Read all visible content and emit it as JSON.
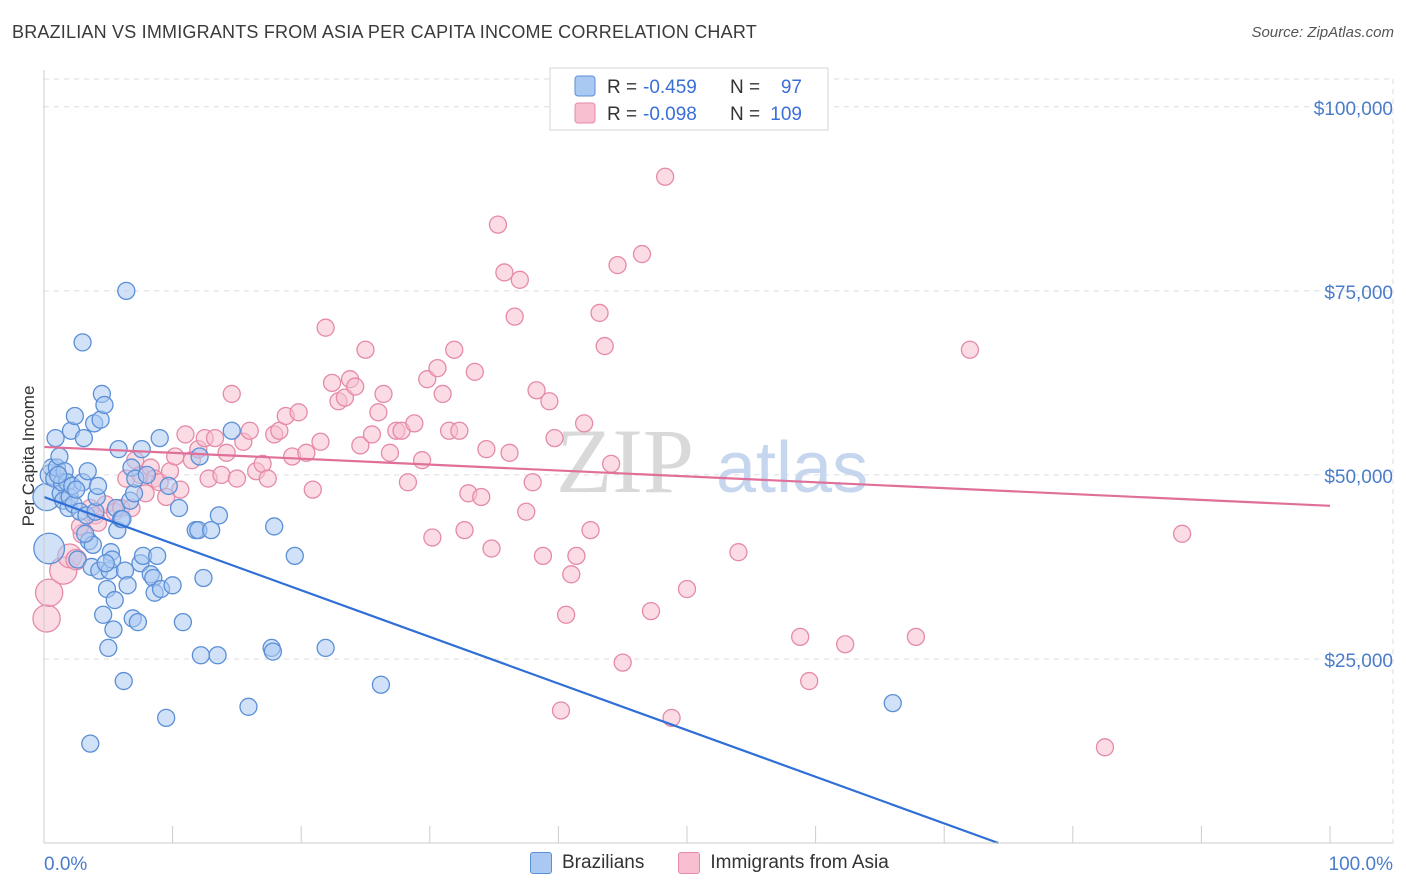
{
  "title": "BRAZILIAN VS IMMIGRANTS FROM ASIA PER CAPITA INCOME CORRELATION CHART",
  "source": "Source: ZipAtlas.com",
  "watermark": {
    "zip": "ZIP",
    "atlas": "atlas"
  },
  "colors": {
    "blue_fill": "#a9c8f2",
    "blue_stroke": "#5b8fd6",
    "blue_line": "#2f6fd6",
    "pink_fill": "#f7bfd0",
    "pink_stroke": "#e58aa8",
    "pink_line": "#e07099",
    "grid": "#dddddd",
    "tick_text": "#4a7ccc"
  },
  "legend": {
    "rows": [
      {
        "r_label": "R =",
        "r_value": "-0.459",
        "n_label": "N =",
        "n_value": "97"
      },
      {
        "r_label": "R =",
        "r_value": "-0.098",
        "n_label": "N =",
        "n_value": "109"
      }
    ]
  },
  "bottom_legend": {
    "series1": "Brazilians",
    "series2": "Immigrants from Asia"
  },
  "chart_data": {
    "type": "scatter",
    "title": "BRAZILIAN VS IMMIGRANTS FROM ASIA PER CAPITA INCOME CORRELATION CHART",
    "xlabel": "",
    "ylabel": "Per Capita Income",
    "xlim": [
      0,
      100
    ],
    "ylim": [
      0,
      105000
    ],
    "x_tick_labels": [
      "0.0%",
      "100.0%"
    ],
    "y_ticks": [
      25000,
      50000,
      75000,
      100000
    ],
    "y_tick_labels": [
      "$25,000",
      "$50,000",
      "$75,000",
      "$100,000"
    ],
    "grid": true,
    "series": [
      {
        "name": "Brazilians",
        "r": -0.459,
        "n": 97,
        "trend": {
          "x": [
            0,
            74.2
          ],
          "y": [
            47000,
            0
          ]
        },
        "points": [
          [
            0.2,
            47000,
            1.6
          ],
          [
            0.4,
            40000,
            1.8
          ],
          [
            0.5,
            50000,
            1.2
          ],
          [
            0.6,
            51000,
            1.0
          ],
          [
            0.8,
            49500,
            1.0
          ],
          [
            0.9,
            55000,
            1.0
          ],
          [
            1.0,
            51000,
            1.0
          ],
          [
            1.2,
            52500,
            1.0
          ],
          [
            1.3,
            47500,
            1.0
          ],
          [
            1.4,
            49000,
            1.0
          ],
          [
            1.5,
            46500,
            1.0
          ],
          [
            1.6,
            50500,
            1.0
          ],
          [
            1.8,
            49000,
            1.0
          ],
          [
            1.9,
            45500,
            1.0
          ],
          [
            2.0,
            47000,
            1.0
          ],
          [
            2.1,
            56000,
            1.0
          ],
          [
            2.2,
            48500,
            1.0
          ],
          [
            2.3,
            46000,
            1.0
          ],
          [
            2.4,
            58000,
            1.0
          ],
          [
            2.6,
            38500,
            1.0
          ],
          [
            2.8,
            45000,
            1.0
          ],
          [
            3.0,
            49000,
            1.0
          ],
          [
            3.1,
            55000,
            1.0
          ],
          [
            3.0,
            68000,
            1.0
          ],
          [
            3.3,
            44500,
            1.0
          ],
          [
            3.4,
            50500,
            1.0
          ],
          [
            3.5,
            41000,
            1.0
          ],
          [
            3.6,
            13500,
            1.0
          ],
          [
            3.7,
            37500,
            1.0
          ],
          [
            3.8,
            40500,
            1.0
          ],
          [
            3.9,
            57000,
            1.0
          ],
          [
            4.0,
            45000,
            1.0
          ],
          [
            4.1,
            47000,
            1.0
          ],
          [
            4.2,
            48500,
            1.0
          ],
          [
            4.3,
            37000,
            1.0
          ],
          [
            4.4,
            57500,
            1.0
          ],
          [
            4.5,
            61000,
            1.0
          ],
          [
            4.6,
            31000,
            1.0
          ],
          [
            4.7,
            59500,
            1.0
          ],
          [
            4.9,
            34500,
            1.0
          ],
          [
            5.0,
            26500,
            1.0
          ],
          [
            5.1,
            37000,
            1.0
          ],
          [
            5.2,
            39500,
            1.0
          ],
          [
            5.3,
            38500,
            1.0
          ],
          [
            5.4,
            29000,
            1.0
          ],
          [
            5.5,
            33000,
            1.0
          ],
          [
            5.6,
            45500,
            1.0
          ],
          [
            5.7,
            42500,
            1.0
          ],
          [
            5.8,
            53500,
            1.0
          ],
          [
            6.0,
            44000,
            1.0
          ],
          [
            6.2,
            22000,
            1.0
          ],
          [
            6.3,
            37000,
            1.0
          ],
          [
            6.4,
            75000,
            1.0
          ],
          [
            6.5,
            35000,
            1.0
          ],
          [
            6.7,
            46500,
            1.0
          ],
          [
            6.8,
            51000,
            1.0
          ],
          [
            6.9,
            30500,
            1.0
          ],
          [
            7.0,
            47500,
            1.0
          ],
          [
            7.1,
            49500,
            1.0
          ],
          [
            7.3,
            30000,
            1.0
          ],
          [
            7.5,
            38000,
            1.0
          ],
          [
            7.6,
            53500,
            1.0
          ],
          [
            7.7,
            39000,
            1.0
          ],
          [
            8.0,
            50000,
            1.0
          ],
          [
            8.3,
            36500,
            1.0
          ],
          [
            8.5,
            36000,
            1.0
          ],
          [
            8.6,
            34000,
            1.0
          ],
          [
            8.8,
            39000,
            1.0
          ],
          [
            9.0,
            55000,
            1.0
          ],
          [
            9.1,
            34500,
            1.0
          ],
          [
            9.5,
            17000,
            1.0
          ],
          [
            9.7,
            48500,
            1.0
          ],
          [
            10.0,
            35000,
            1.0
          ],
          [
            10.5,
            45500,
            1.0
          ],
          [
            10.8,
            30000,
            1.0
          ],
          [
            11.8,
            42500,
            1.0
          ],
          [
            12.0,
            42500,
            1.0
          ],
          [
            12.1,
            52500,
            1.0
          ],
          [
            12.2,
            25500,
            1.0
          ],
          [
            12.4,
            36000,
            1.0
          ],
          [
            13.0,
            42500,
            1.0
          ],
          [
            13.5,
            25500,
            1.0
          ],
          [
            13.6,
            44500,
            1.0
          ],
          [
            14.6,
            56000,
            1.0
          ],
          [
            15.9,
            18500,
            1.0
          ],
          [
            17.7,
            26500,
            1.0
          ],
          [
            17.8,
            26000,
            1.0
          ],
          [
            17.9,
            43000,
            1.0
          ],
          [
            19.5,
            39000,
            1.0
          ],
          [
            21.9,
            26500,
            1.0
          ],
          [
            26.2,
            21500,
            1.0
          ],
          [
            66.0,
            19000,
            1.0
          ],
          [
            1.1,
            50000,
            1.0
          ],
          [
            2.5,
            48000,
            1.0
          ],
          [
            6.1,
            44000,
            1.0
          ],
          [
            3.2,
            42000,
            1.0
          ],
          [
            4.8,
            38000,
            1.0
          ]
        ]
      },
      {
        "name": "Immigrants from Asia",
        "r": -0.098,
        "n": 109,
        "trend": {
          "x": [
            0,
            100
          ],
          "y": [
            53800,
            45800
          ]
        },
        "points": [
          [
            0.2,
            30500,
            1.6
          ],
          [
            0.4,
            34000,
            1.6
          ],
          [
            1.5,
            37000,
            1.6
          ],
          [
            2.0,
            39000,
            1.4
          ],
          [
            2.5,
            38500,
            1.2
          ],
          [
            3.0,
            42000,
            1.1
          ],
          [
            3.6,
            45500,
            1.0
          ],
          [
            4.0,
            44500,
            1.0
          ],
          [
            4.2,
            43500,
            1.0
          ],
          [
            4.8,
            46000,
            1.0
          ],
          [
            5.5,
            45000,
            1.0
          ],
          [
            6.0,
            45500,
            1.0
          ],
          [
            6.4,
            49500,
            1.0
          ],
          [
            6.8,
            45500,
            1.0
          ],
          [
            7.1,
            52000,
            1.0
          ],
          [
            7.5,
            50000,
            1.0
          ],
          [
            7.9,
            47500,
            1.0
          ],
          [
            8.3,
            51000,
            1.0
          ],
          [
            8.6,
            49500,
            1.0
          ],
          [
            9.0,
            49000,
            1.0
          ],
          [
            9.5,
            47000,
            1.0
          ],
          [
            9.8,
            50500,
            1.0
          ],
          [
            10.2,
            52500,
            1.0
          ],
          [
            10.6,
            48000,
            1.0
          ],
          [
            11.0,
            55500,
            1.0
          ],
          [
            11.5,
            52000,
            1.0
          ],
          [
            12.0,
            53500,
            1.0
          ],
          [
            12.5,
            55000,
            1.0
          ],
          [
            12.8,
            49500,
            1.0
          ],
          [
            13.3,
            55000,
            1.0
          ],
          [
            13.8,
            50000,
            1.0
          ],
          [
            14.2,
            53000,
            1.0
          ],
          [
            14.6,
            61000,
            1.0
          ],
          [
            15.0,
            49500,
            1.0
          ],
          [
            15.5,
            54500,
            1.0
          ],
          [
            16.0,
            56000,
            1.0
          ],
          [
            16.5,
            50500,
            1.0
          ],
          [
            17.0,
            51500,
            1.0
          ],
          [
            17.4,
            49500,
            1.0
          ],
          [
            17.9,
            55500,
            1.0
          ],
          [
            18.3,
            56000,
            1.0
          ],
          [
            18.8,
            58000,
            1.0
          ],
          [
            19.3,
            52500,
            1.0
          ],
          [
            19.8,
            58500,
            1.0
          ],
          [
            20.4,
            53000,
            1.0
          ],
          [
            20.9,
            48000,
            1.0
          ],
          [
            21.5,
            54500,
            1.0
          ],
          [
            21.9,
            70000,
            1.0
          ],
          [
            22.4,
            62500,
            1.0
          ],
          [
            22.9,
            60000,
            1.0
          ],
          [
            23.4,
            60500,
            1.0
          ],
          [
            23.8,
            63000,
            1.0
          ],
          [
            24.2,
            62000,
            1.0
          ],
          [
            24.6,
            54000,
            1.0
          ],
          [
            25.0,
            67000,
            1.0
          ],
          [
            25.5,
            55500,
            1.0
          ],
          [
            26.0,
            58500,
            1.0
          ],
          [
            26.4,
            61000,
            1.0
          ],
          [
            26.9,
            53000,
            1.0
          ],
          [
            27.4,
            56000,
            1.0
          ],
          [
            27.8,
            56000,
            1.0
          ],
          [
            28.3,
            49000,
            1.0
          ],
          [
            28.8,
            57000,
            1.0
          ],
          [
            29.4,
            52000,
            1.0
          ],
          [
            29.8,
            63000,
            1.0
          ],
          [
            30.2,
            41500,
            1.0
          ],
          [
            30.6,
            64500,
            1.0
          ],
          [
            31.0,
            61000,
            1.0
          ],
          [
            31.5,
            56000,
            1.0
          ],
          [
            31.9,
            67000,
            1.0
          ],
          [
            32.3,
            56000,
            1.0
          ],
          [
            32.7,
            42500,
            1.0
          ],
          [
            33.0,
            47500,
            1.0
          ],
          [
            33.5,
            64000,
            1.0
          ],
          [
            34.0,
            47000,
            1.0
          ],
          [
            34.4,
            53500,
            1.0
          ],
          [
            34.8,
            40000,
            1.0
          ],
          [
            35.3,
            84000,
            1.0
          ],
          [
            35.8,
            77500,
            1.0
          ],
          [
            36.2,
            53000,
            1.0
          ],
          [
            36.6,
            71500,
            1.0
          ],
          [
            37.0,
            76500,
            1.0
          ],
          [
            37.5,
            45000,
            1.0
          ],
          [
            38.0,
            49000,
            1.0
          ],
          [
            38.3,
            61500,
            1.0
          ],
          [
            38.8,
            39000,
            1.0
          ],
          [
            39.3,
            60000,
            1.0
          ],
          [
            39.7,
            55000,
            1.0
          ],
          [
            40.2,
            18000,
            1.0
          ],
          [
            40.6,
            31000,
            1.0
          ],
          [
            41.0,
            36500,
            1.0
          ],
          [
            41.4,
            39000,
            1.0
          ],
          [
            42.0,
            57000,
            1.0
          ],
          [
            42.5,
            42500,
            1.0
          ],
          [
            43.2,
            72000,
            1.0
          ],
          [
            43.6,
            67500,
            1.0
          ],
          [
            44.1,
            51500,
            1.0
          ],
          [
            44.6,
            78500,
            1.0
          ],
          [
            45.0,
            24500,
            1.0
          ],
          [
            46.5,
            80000,
            1.0
          ],
          [
            47.2,
            31500,
            1.0
          ],
          [
            48.3,
            90500,
            1.0
          ],
          [
            48.8,
            17000,
            1.0
          ],
          [
            50.0,
            34500,
            1.0
          ],
          [
            54.0,
            39500,
            1.0
          ],
          [
            58.8,
            28000,
            1.0
          ],
          [
            59.5,
            22000,
            1.0
          ],
          [
            62.3,
            27000,
            1.0
          ],
          [
            67.8,
            28000,
            1.0
          ],
          [
            72.0,
            67000,
            1.0
          ],
          [
            82.5,
            13000,
            1.0
          ],
          [
            88.5,
            42000,
            1.0
          ],
          [
            2.8,
            43000,
            1.0
          ]
        ]
      }
    ]
  }
}
